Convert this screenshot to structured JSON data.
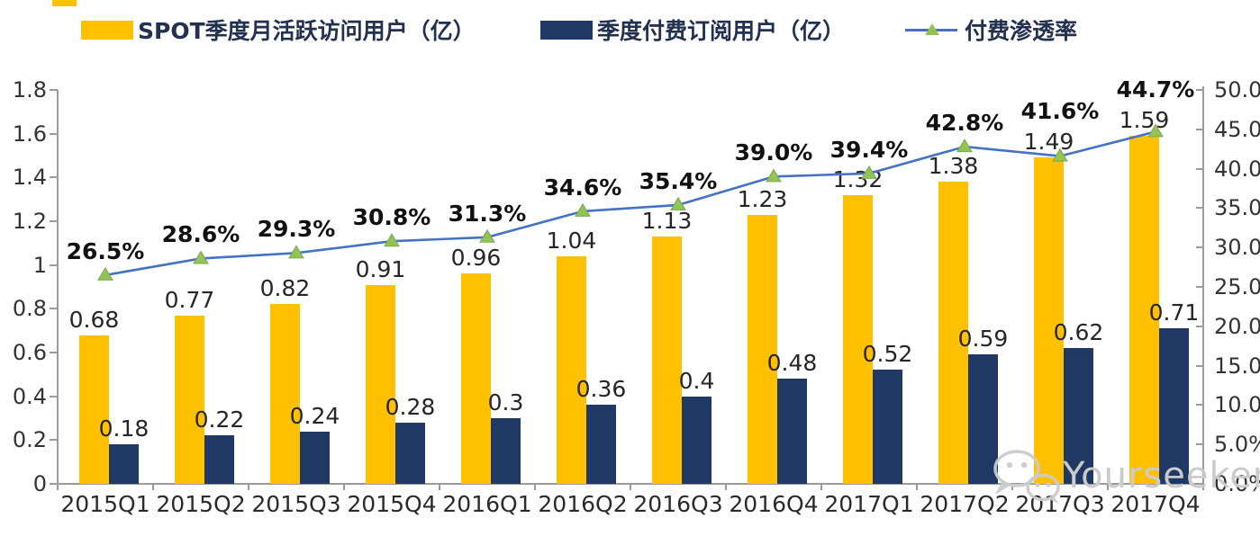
{
  "legend": {
    "mau_label": "SPOT季度月活跃访问用户（亿）",
    "subs_label": "季度付费订阅用户（亿）",
    "penetration_label": "付费渗透率"
  },
  "watermark": {
    "text": "Yourseeker"
  },
  "colors": {
    "mau": "#FFC000",
    "subs": "#1F3864",
    "line": "#4472C4",
    "marker": "#92C353",
    "marker_edge": "#7DA653",
    "axis": "#9a9a9a",
    "legend_text": "#22314F",
    "bar_label": "#262626",
    "pct_label": "#111111",
    "watermark": "#CBCBCB"
  },
  "chart_data": {
    "type": "bar",
    "subtype": "grouped-bars-with-line",
    "categories": [
      "2015Q1",
      "2015Q2",
      "2015Q3",
      "2015Q4",
      "2016Q1",
      "2016Q2",
      "2016Q3",
      "2016Q4",
      "2017Q1",
      "2017Q2",
      "2017Q3",
      "2017Q4"
    ],
    "series": [
      {
        "name": "SPOT季度月活跃访问用户（亿）",
        "type": "bar",
        "axis": "left",
        "values": [
          0.68,
          0.77,
          0.82,
          0.91,
          0.96,
          1.04,
          1.13,
          1.23,
          1.32,
          1.38,
          1.49,
          1.59
        ],
        "labels": [
          "0.68",
          "0.77",
          "0.82",
          "0.91",
          "0.96",
          "1.04",
          "1.13",
          "1.23",
          "1.32",
          "1.38",
          "1.49",
          "1.59"
        ]
      },
      {
        "name": "季度付费订阅用户（亿）",
        "type": "bar",
        "axis": "left",
        "values": [
          0.18,
          0.22,
          0.24,
          0.28,
          0.3,
          0.36,
          0.4,
          0.48,
          0.52,
          0.59,
          0.62,
          0.71
        ],
        "labels": [
          "0.18",
          "0.22",
          "0.24",
          "0.28",
          "0.3",
          "0.36",
          "0.4",
          "0.48",
          "0.52",
          "0.59",
          "0.62",
          "0.71"
        ]
      },
      {
        "name": "付费渗透率",
        "type": "line",
        "axis": "right",
        "values": [
          26.5,
          28.6,
          29.3,
          30.8,
          31.3,
          34.6,
          35.4,
          39.0,
          39.4,
          42.8,
          41.6,
          44.7
        ],
        "labels": [
          "26.5%",
          "28.6%",
          "29.3%",
          "30.8%",
          "31.3%",
          "34.6%",
          "35.4%",
          "39.0%",
          "39.4%",
          "42.8%",
          "41.6%",
          "44.7%"
        ]
      }
    ],
    "left_axis": {
      "min": 0,
      "max": 1.8,
      "step": 0.2,
      "ticks": [
        "0",
        "0.2",
        "0.4",
        "0.6",
        "0.8",
        "1",
        "1.2",
        "1.4",
        "1.6",
        "1.8"
      ]
    },
    "right_axis": {
      "min": 0,
      "max": 50,
      "step": 5,
      "ticks": [
        "0.0%",
        "5.0%",
        "10.0%",
        "15.0%",
        "20.0%",
        "25.0%",
        "30.0%",
        "35.0%",
        "40.0%",
        "45.0%",
        "50.0%"
      ]
    },
    "grid": false,
    "legend_position": "top"
  }
}
